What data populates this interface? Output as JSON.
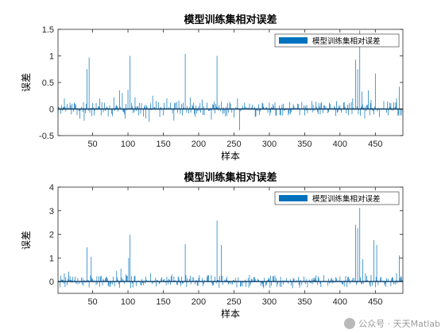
{
  "chart_data": [
    {
      "type": "bar",
      "title": "模型训练集相对误差",
      "xlabel": "样本",
      "ylabel": "误差",
      "xlim": [
        1,
        489
      ],
      "ylim": [
        -0.5,
        1.5
      ],
      "xticks": [
        50,
        100,
        150,
        200,
        250,
        300,
        350,
        400,
        450
      ],
      "yticks": [
        -0.5,
        0,
        0.5,
        1,
        1.5
      ],
      "ytick_labels": [
        "-0.5",
        "0",
        "0.5",
        "1",
        "1.5"
      ],
      "legend": {
        "entries": [
          "模型训练集相对误差"
        ],
        "position": "top-right"
      },
      "series": [
        {
          "name": "模型训练集相对误差",
          "color": "#0072bd",
          "points": [
            [
              10,
              0.2
            ],
            [
              18,
              0.12
            ],
            [
              25,
              0.1
            ],
            [
              32,
              -0.18
            ],
            [
              38,
              -0.22
            ],
            [
              42,
              0.75
            ],
            [
              45,
              0.97
            ],
            [
              52,
              -0.12
            ],
            [
              60,
              0.2
            ],
            [
              67,
              0.12
            ],
            [
              72,
              -0.14
            ],
            [
              80,
              0.22
            ],
            [
              88,
              0.35
            ],
            [
              92,
              0.3
            ],
            [
              96,
              -0.18
            ],
            [
              100,
              0.36
            ],
            [
              103,
              1.0
            ],
            [
              110,
              0.22
            ],
            [
              115,
              -0.12
            ],
            [
              125,
              -0.18
            ],
            [
              130,
              -0.24
            ],
            [
              135,
              0.25
            ],
            [
              140,
              0.15
            ],
            [
              145,
              -0.15
            ],
            [
              150,
              -0.12
            ],
            [
              155,
              0.2
            ],
            [
              160,
              0.12
            ],
            [
              165,
              -0.22
            ],
            [
              172,
              0.16
            ],
            [
              178,
              0.12
            ],
            [
              181,
              1.04
            ],
            [
              188,
              0.22
            ],
            [
              195,
              -0.15
            ],
            [
              205,
              0.18
            ],
            [
              212,
              0.12
            ],
            [
              218,
              -0.2
            ],
            [
              226,
              1.0
            ],
            [
              232,
              0.14
            ],
            [
              238,
              -0.14
            ],
            [
              245,
              0.1
            ],
            [
              250,
              -0.16
            ],
            [
              255,
              0.2
            ],
            [
              258,
              -0.4
            ],
            [
              265,
              0.12
            ],
            [
              272,
              0.1
            ],
            [
              280,
              -0.15
            ],
            [
              290,
              0.12
            ],
            [
              300,
              0.12
            ],
            [
              310,
              -0.13
            ],
            [
              320,
              0.1
            ],
            [
              330,
              -0.1
            ],
            [
              340,
              0.1
            ],
            [
              350,
              -0.12
            ],
            [
              360,
              0.15
            ],
            [
              372,
              -0.1
            ],
            [
              385,
              0.12
            ],
            [
              395,
              0.15
            ],
            [
              405,
              0.12
            ],
            [
              412,
              -0.12
            ],
            [
              418,
              0.2
            ],
            [
              422,
              0.93
            ],
            [
              425,
              0.75
            ],
            [
              428,
              1.48
            ],
            [
              431,
              0.33
            ],
            [
              435,
              -0.18
            ],
            [
              440,
              0.35
            ],
            [
              444,
              0.17
            ],
            [
              450,
              0.67
            ],
            [
              456,
              -0.15
            ],
            [
              462,
              0.15
            ],
            [
              470,
              0.12
            ],
            [
              476,
              0.13
            ],
            [
              480,
              0.2
            ],
            [
              484,
              0.42
            ],
            [
              487,
              -0.12
            ]
          ]
        }
      ]
    },
    {
      "type": "bar",
      "title": "模型训练集相对误差",
      "xlabel": "样本",
      "ylabel": "误差",
      "xlim": [
        1,
        489
      ],
      "ylim": [
        -0.5,
        4
      ],
      "xticks": [
        50,
        100,
        150,
        200,
        250,
        300,
        350,
        400,
        450
      ],
      "yticks": [
        0,
        1,
        2,
        3,
        4
      ],
      "ytick_labels": [
        "0",
        "1",
        "2",
        "3",
        "4"
      ],
      "legend": {
        "entries": [
          "模型训练集相对误差"
        ],
        "position": "top-right"
      },
      "series": [
        {
          "name": "模型训练集相对误差",
          "color": "#0072bd",
          "points": [
            [
              5,
              0.25
            ],
            [
              10,
              0.35
            ],
            [
              16,
              0.42
            ],
            [
              22,
              0.2
            ],
            [
              28,
              -0.12
            ],
            [
              34,
              0.18
            ],
            [
              42,
              1.45
            ],
            [
              48,
              1.05
            ],
            [
              55,
              -0.15
            ],
            [
              62,
              0.25
            ],
            [
              70,
              0.2
            ],
            [
              78,
              -0.12
            ],
            [
              84,
              0.45
            ],
            [
              90,
              0.55
            ],
            [
              97,
              0.3
            ],
            [
              101,
              1.0
            ],
            [
              103,
              1.98
            ],
            [
              110,
              0.25
            ],
            [
              118,
              -0.15
            ],
            [
              125,
              0.22
            ],
            [
              132,
              0.35
            ],
            [
              140,
              -0.2
            ],
            [
              148,
              0.18
            ],
            [
              155,
              0.2
            ],
            [
              162,
              0.3
            ],
            [
              170,
              -0.15
            ],
            [
              176,
              0.2
            ],
            [
              181,
              1.58
            ],
            [
              188,
              0.25
            ],
            [
              195,
              -0.12
            ],
            [
              205,
              0.15
            ],
            [
              212,
              0.2
            ],
            [
              220,
              -0.18
            ],
            [
              226,
              2.58
            ],
            [
              232,
              1.55
            ],
            [
              240,
              0.2
            ],
            [
              248,
              -0.12
            ],
            [
              256,
              0.18
            ],
            [
              262,
              -0.2
            ],
            [
              270,
              0.15
            ],
            [
              280,
              0.1
            ],
            [
              290,
              -0.1
            ],
            [
              300,
              0.12
            ],
            [
              310,
              0.15
            ],
            [
              320,
              -0.12
            ],
            [
              330,
              0.1
            ],
            [
              342,
              -0.15
            ],
            [
              352,
              0.12
            ],
            [
              362,
              0.15
            ],
            [
              372,
              -0.1
            ],
            [
              384,
              0.12
            ],
            [
              394,
              0.18
            ],
            [
              404,
              -0.12
            ],
            [
              412,
              0.2
            ],
            [
              418,
              0.15
            ],
            [
              422,
              2.4
            ],
            [
              425,
              2.25
            ],
            [
              428,
              3.12
            ],
            [
              432,
              0.95
            ],
            [
              436,
              0.35
            ],
            [
              442,
              -0.15
            ],
            [
              448,
              1.75
            ],
            [
              452,
              1.55
            ],
            [
              458,
              0.2
            ],
            [
              466,
              0.15
            ],
            [
              474,
              0.2
            ],
            [
              480,
              0.35
            ],
            [
              484,
              1.1
            ],
            [
              487,
              0.18
            ]
          ]
        }
      ]
    }
  ],
  "watermark": {
    "text": "公众号 · 天天Matlab",
    "icon": "wechat-icon"
  }
}
